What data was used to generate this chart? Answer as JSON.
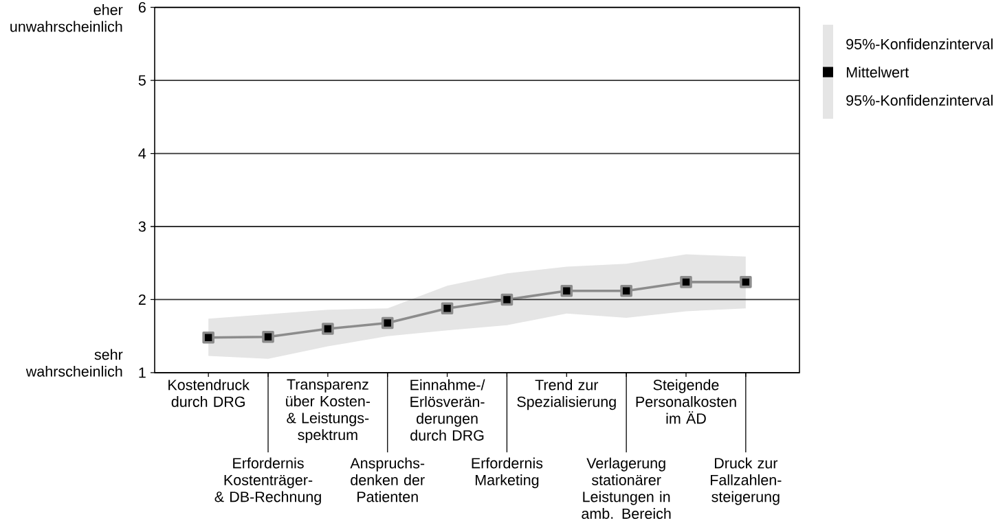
{
  "chart_data": {
    "type": "line",
    "categories": [
      "Kostendruck durch DRG",
      "Erfordernis Kostenträger- & DB-Rechnung",
      "Transparenz über Kosten- & Leistungs- spektrum",
      "Anspruchs- denken der Patienten",
      "Einnahme-/ Erlösverän- derungen durch DRG",
      "Erfordernis Marketing",
      "Trend zur Spezialisierung",
      "Verlagerung stationärer Leistungen in amb. Bereich",
      "Steigende Personalkosten im ÄD",
      "Druck zur Fallzahlen- steigerung"
    ],
    "series": [
      {
        "name": "Mittelwert",
        "color": "#000000",
        "values": [
          1.48,
          1.49,
          1.6,
          1.68,
          1.88,
          2.0,
          2.12,
          2.12,
          2.24,
          2.24
        ],
        "lower": [
          1.23,
          1.19,
          1.36,
          1.5,
          1.58,
          1.65,
          1.81,
          1.75,
          1.84,
          1.88
        ],
        "upper": [
          1.74,
          1.8,
          1.86,
          1.88,
          2.19,
          2.36,
          2.45,
          2.49,
          2.62,
          2.59
        ]
      }
    ],
    "ylim": [
      1,
      6
    ],
    "yticks": [
      1,
      2,
      3,
      4,
      5,
      6
    ],
    "grid": "y",
    "marker": "square",
    "legend": "right",
    "annotations": [
      "eher unwahrscheinlich",
      "sehr wahrscheinlich",
      "95%-Konfidenzinterval",
      "95%-Konfidenzinterval"
    ]
  }
}
